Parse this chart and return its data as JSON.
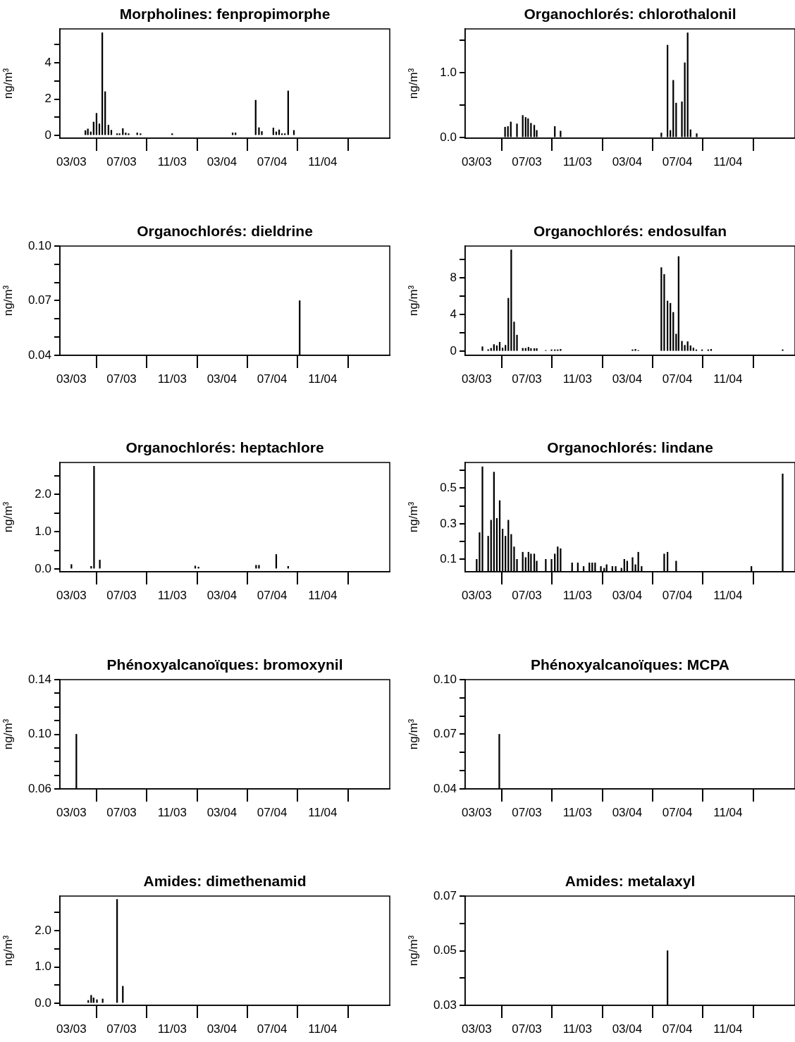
{
  "chart_data": [
    {
      "type": "bar",
      "title": "Morpholines: fenpropimorphe",
      "ylabel": "ng/m³",
      "color": "#000000",
      "x": [
        "2003-04-04",
        "2003-04-10",
        "2003-04-17",
        "2003-04-24",
        "2003-05-01",
        "2003-05-08",
        "2003-05-15",
        "2003-05-22",
        "2003-05-30",
        "2003-06-06",
        "2003-06-20",
        "2003-06-26",
        "2003-07-04",
        "2003-07-11",
        "2003-07-18",
        "2003-08-08",
        "2003-08-16",
        "2003-11-01",
        "2004-03-27",
        "2004-04-03",
        "2004-05-22",
        "2004-05-30",
        "2004-06-06",
        "2004-07-04",
        "2004-07-11",
        "2004-07-18",
        "2004-07-25",
        "2004-08-01",
        "2004-08-09",
        "2004-08-23"
      ],
      "values": [
        0.27,
        0.36,
        0.2,
        0.74,
        1.22,
        0.64,
        5.65,
        2.41,
        0.57,
        0.29,
        0.1,
        0.1,
        0.38,
        0.14,
        0.1,
        0.14,
        0.1,
        0.1,
        0.14,
        0.14,
        1.94,
        0.43,
        0.22,
        0.41,
        0.2,
        0.31,
        0.1,
        0.1,
        2.45,
        0.28
      ],
      "xlim": [
        "2003-02-01",
        "2005-04-13"
      ],
      "xticks": [
        {
          "value": "2003-03",
          "label": "03/03"
        },
        {
          "value": "2003-07",
          "label": "07/03"
        },
        {
          "value": "2003-11",
          "label": "11/03"
        },
        {
          "value": "2004-03",
          "label": "03/04"
        },
        {
          "value": "2004-07",
          "label": "07/04"
        },
        {
          "value": "2004-11",
          "label": "11/04"
        }
      ],
      "ylim": [
        -0.15,
        5.86
      ],
      "yticks": [
        0,
        {
          "value": 1,
          "label": null
        },
        2,
        {
          "value": 3,
          "label": null
        },
        4,
        {
          "value": 5,
          "label": null
        }
      ]
    },
    {
      "type": "bar",
      "title": "Organochlorés: chlorothalonil",
      "ylabel": "ng/m³",
      "color": "#000000",
      "x": [
        "2003-05-09",
        "2003-05-16",
        "2003-05-23",
        "2003-06-07",
        "2003-06-21",
        "2003-06-28",
        "2003-07-04",
        "2003-07-11",
        "2003-07-19",
        "2003-07-25",
        "2003-09-07",
        "2003-09-21",
        "2004-05-23",
        "2004-06-07",
        "2004-06-14",
        "2004-06-21",
        "2004-06-28",
        "2004-07-12",
        "2004-07-19",
        "2004-07-26",
        "2004-08-02",
        "2004-08-17"
      ],
      "values": [
        0.16,
        0.17,
        0.24,
        0.21,
        0.34,
        0.31,
        0.29,
        0.22,
        0.19,
        0.11,
        0.17,
        0.1,
        0.07,
        1.42,
        0.11,
        0.88,
        0.53,
        0.55,
        1.15,
        1.61,
        0.12,
        0.06
      ],
      "xlim": [
        "2003-02-01",
        "2005-04-13"
      ],
      "xticks": [
        {
          "value": "2003-03",
          "label": "03/03"
        },
        {
          "value": "2003-07",
          "label": "07/03"
        },
        {
          "value": "2003-11",
          "label": "11/03"
        },
        {
          "value": "2004-03",
          "label": "03/04"
        },
        {
          "value": "2004-07",
          "label": "07/04"
        },
        {
          "value": "2004-11",
          "label": "11/04"
        }
      ],
      "ylim": [
        -0.01,
        1.67
      ],
      "yticks": [
        {
          "value": 0,
          "label": "0.0"
        },
        {
          "value": 0.5,
          "label": null
        },
        {
          "value": 1,
          "label": "1.0"
        },
        {
          "value": 1.5,
          "label": null
        }
      ]
    },
    {
      "type": "bar",
      "title": "Organochlorés: dieldrine",
      "ylabel": "ng/m³",
      "color": "#000000",
      "x": [
        "2004-09-06"
      ],
      "values": [
        0.07
      ],
      "xlim": [
        "2003-02-01",
        "2005-04-13"
      ],
      "xticks": [
        {
          "value": "2003-03",
          "label": "03/03"
        },
        {
          "value": "2003-07",
          "label": "07/03"
        },
        {
          "value": "2003-11",
          "label": "11/03"
        },
        {
          "value": "2004-03",
          "label": "03/04"
        },
        {
          "value": "2004-07",
          "label": "07/04"
        },
        {
          "value": "2004-11",
          "label": "11/04"
        }
      ],
      "ylim": [
        0.04,
        0.1
      ],
      "yticks": [
        0.04,
        {
          "value": 0.05,
          "label": null
        },
        {
          "value": 0.06,
          "label": null
        },
        0.07,
        {
          "value": 0.08,
          "label": null
        },
        {
          "value": 0.09,
          "label": null
        },
        {
          "value": 0.1,
          "label": "0.10"
        }
      ]
    },
    {
      "type": "bar",
      "title": "Organochlorés: endosulfan",
      "ylabel": "ng/m³",
      "color": "#000000",
      "x": [
        "2003-03-15",
        "2003-03-29",
        "2003-04-05",
        "2003-04-12",
        "2003-04-19",
        "2003-04-26",
        "2003-05-03",
        "2003-05-10",
        "2003-05-17",
        "2003-05-24",
        "2003-05-31",
        "2003-06-07",
        "2003-06-21",
        "2003-06-28",
        "2003-07-05",
        "2003-07-11",
        "2003-07-19",
        "2003-07-25",
        "2003-08-16",
        "2003-08-30",
        "2003-09-07",
        "2003-09-14",
        "2003-09-21",
        "2004-03-14",
        "2004-03-21",
        "2004-03-28",
        "2004-05-23",
        "2004-05-30",
        "2004-06-07",
        "2004-06-14",
        "2004-06-21",
        "2004-06-28",
        "2004-07-04",
        "2004-07-12",
        "2004-07-19",
        "2004-07-26",
        "2004-08-02",
        "2004-08-09",
        "2004-08-16",
        "2004-08-30",
        "2004-09-14",
        "2004-09-21",
        "2005-03-14"
      ],
      "values": [
        0.5,
        0.19,
        0.33,
        0.74,
        0.61,
        0.99,
        0.36,
        0.66,
        5.79,
        11.06,
        3.2,
        1.77,
        0.33,
        0.33,
        0.44,
        0.3,
        0.3,
        0.3,
        0.1,
        0.17,
        0.17,
        0.17,
        0.22,
        0.17,
        0.22,
        0.1,
        9.13,
        8.39,
        5.49,
        5.24,
        4.25,
        1.88,
        10.34,
        1.1,
        0.66,
        1.05,
        0.61,
        0.36,
        0.17,
        0.17,
        0.17,
        0.22,
        0.17
      ],
      "xlim": [
        "2003-02-01",
        "2005-04-13"
      ],
      "xticks": [
        {
          "value": "2003-03",
          "label": "03/03"
        },
        {
          "value": "2003-07",
          "label": "07/03"
        },
        {
          "value": "2003-11",
          "label": "11/03"
        },
        {
          "value": "2004-03",
          "label": "03/04"
        },
        {
          "value": "2004-07",
          "label": "07/04"
        },
        {
          "value": "2004-11",
          "label": "11/04"
        }
      ],
      "ylim": [
        -0.44,
        11.48
      ],
      "yticks": [
        0,
        {
          "value": 2,
          "label": null
        },
        4,
        {
          "value": 6,
          "label": null
        },
        8,
        {
          "value": 10,
          "label": null
        }
      ]
    },
    {
      "type": "bar",
      "title": "Organochlorés: heptachlore",
      "ylabel": "ng/m³",
      "color": "#000000",
      "x": [
        "2003-03-01",
        "2003-04-18",
        "2003-04-25",
        "2003-05-09",
        "2003-12-27",
        "2004-01-04",
        "2004-05-23",
        "2004-05-30",
        "2004-07-11",
        "2004-08-09"
      ],
      "values": [
        0.12,
        0.07,
        2.76,
        0.24,
        0.08,
        0.05,
        0.1,
        0.1,
        0.39,
        0.07
      ],
      "xlim": [
        "2003-02-01",
        "2005-04-13"
      ],
      "xticks": [
        {
          "value": "2003-03",
          "label": "03/03"
        },
        {
          "value": "2003-07",
          "label": "07/03"
        },
        {
          "value": "2003-11",
          "label": "11/03"
        },
        {
          "value": "2004-03",
          "label": "03/04"
        },
        {
          "value": "2004-07",
          "label": "07/04"
        },
        {
          "value": "2004-11",
          "label": "11/04"
        }
      ],
      "ylim": [
        -0.075,
        2.86
      ],
      "yticks": [
        {
          "value": 0,
          "label": "0.0"
        },
        {
          "value": 0.5,
          "label": null
        },
        {
          "value": 1,
          "label": "1.0"
        },
        {
          "value": 1.5,
          "label": null
        },
        {
          "value": 2,
          "label": "2.0"
        },
        {
          "value": 2.5,
          "label": null
        }
      ]
    },
    {
      "type": "bar",
      "title": "Organochlorés: lindane",
      "ylabel": "ng/m³",
      "color": "#000000",
      "x": [
        "2003-03-01",
        "2003-03-08",
        "2003-03-15",
        "2003-03-29",
        "2003-04-05",
        "2003-04-12",
        "2003-04-19",
        "2003-04-26",
        "2003-05-03",
        "2003-05-10",
        "2003-05-17",
        "2003-05-24",
        "2003-05-31",
        "2003-06-07",
        "2003-06-21",
        "2003-06-28",
        "2003-07-05",
        "2003-07-11",
        "2003-07-19",
        "2003-07-25",
        "2003-08-16",
        "2003-08-30",
        "2003-09-07",
        "2003-09-14",
        "2003-09-21",
        "2003-10-19",
        "2003-11-02",
        "2003-11-16",
        "2003-11-30",
        "2003-12-07",
        "2003-12-14",
        "2003-12-28",
        "2004-01-05",
        "2004-01-11",
        "2004-01-25",
        "2004-02-02",
        "2004-02-16",
        "2004-02-23",
        "2004-03-01",
        "2004-03-14",
        "2004-03-21",
        "2004-03-28",
        "2004-04-05",
        "2004-05-30",
        "2004-06-07",
        "2004-06-28",
        "2004-12-28",
        "2005-03-14"
      ],
      "values": [
        0.1,
        0.25,
        0.62,
        0.23,
        0.32,
        0.59,
        0.33,
        0.43,
        0.27,
        0.23,
        0.32,
        0.24,
        0.17,
        0.1,
        0.14,
        0.11,
        0.14,
        0.13,
        0.13,
        0.09,
        0.1,
        0.1,
        0.13,
        0.17,
        0.16,
        0.08,
        0.08,
        0.06,
        0.08,
        0.08,
        0.08,
        0.06,
        0.05,
        0.07,
        0.06,
        0.06,
        0.05,
        0.1,
        0.09,
        0.11,
        0.07,
        0.14,
        0.06,
        0.13,
        0.14,
        0.09,
        0.06,
        0.58
      ],
      "xlim": [
        "2003-02-01",
        "2005-04-13"
      ],
      "xticks": [
        {
          "value": "2003-03",
          "label": "03/03"
        },
        {
          "value": "2003-07",
          "label": "07/03"
        },
        {
          "value": "2003-11",
          "label": "11/03"
        },
        {
          "value": "2004-03",
          "label": "03/04"
        },
        {
          "value": "2004-07",
          "label": "07/04"
        },
        {
          "value": "2004-11",
          "label": "11/04"
        }
      ],
      "ylim": [
        0.03,
        0.644
      ],
      "yticks": [
        0.1,
        {
          "value": 0.2,
          "label": null
        },
        0.3,
        {
          "value": 0.4,
          "label": null
        },
        0.5,
        {
          "value": 0.6,
          "label": null
        }
      ]
    },
    {
      "type": "bar",
      "title": "Phénoxyalcanoïques: bromoxynil",
      "ylabel": "ng/m³",
      "color": "#000000",
      "x": [
        "2003-03-13"
      ],
      "values": [
        0.1
      ],
      "xlim": [
        "2003-02-01",
        "2005-04-13"
      ],
      "xticks": [
        {
          "value": "2003-03",
          "label": "03/03"
        },
        {
          "value": "2003-07",
          "label": "07/03"
        },
        {
          "value": "2003-11",
          "label": "11/03"
        },
        {
          "value": "2004-03",
          "label": "03/04"
        },
        {
          "value": "2004-07",
          "label": "07/04"
        },
        {
          "value": "2004-11",
          "label": "11/04"
        }
      ],
      "ylim": [
        0.06,
        0.14
      ],
      "yticks": [
        0.06,
        {
          "value": 0.07,
          "label": null
        },
        {
          "value": 0.08,
          "label": null
        },
        {
          "value": 0.09,
          "label": null
        },
        {
          "value": 0.1,
          "label": "0.10"
        },
        {
          "value": 0.11,
          "label": null
        },
        {
          "value": 0.12,
          "label": null
        },
        {
          "value": 0.13,
          "label": null
        },
        0.14
      ]
    },
    {
      "type": "bar",
      "title": "Phénoxyalcanoïques: MCPA",
      "ylabel": "ng/m³",
      "color": "#000000",
      "x": [
        "2003-04-25"
      ],
      "values": [
        0.07
      ],
      "xlim": [
        "2003-02-01",
        "2005-04-13"
      ],
      "xticks": [
        {
          "value": "2003-03",
          "label": "03/03"
        },
        {
          "value": "2003-07",
          "label": "07/03"
        },
        {
          "value": "2003-11",
          "label": "11/03"
        },
        {
          "value": "2004-03",
          "label": "03/04"
        },
        {
          "value": "2004-07",
          "label": "07/04"
        },
        {
          "value": "2004-11",
          "label": "11/04"
        }
      ],
      "ylim": [
        0.04,
        0.1
      ],
      "yticks": [
        0.04,
        {
          "value": 0.05,
          "label": null
        },
        {
          "value": 0.06,
          "label": null
        },
        0.07,
        {
          "value": 0.08,
          "label": null
        },
        {
          "value": 0.09,
          "label": null
        },
        {
          "value": 0.1,
          "label": "0.10"
        }
      ]
    },
    {
      "type": "bar",
      "title": "Amides: dimethenamid",
      "ylabel": "ng/m³",
      "color": "#000000",
      "x": [
        "2003-04-11",
        "2003-04-18",
        "2003-04-24",
        "2003-05-02",
        "2003-05-16",
        "2003-06-20",
        "2003-07-04"
      ],
      "values": [
        0.08,
        0.22,
        0.15,
        0.1,
        0.12,
        2.86,
        0.47
      ],
      "xlim": [
        "2003-02-01",
        "2005-04-13"
      ],
      "xticks": [
        {
          "value": "2003-03",
          "label": "03/03"
        },
        {
          "value": "2003-07",
          "label": "07/03"
        },
        {
          "value": "2003-11",
          "label": "11/03"
        },
        {
          "value": "2004-03",
          "label": "03/04"
        },
        {
          "value": "2004-07",
          "label": "07/04"
        },
        {
          "value": "2004-11",
          "label": "11/04"
        }
      ],
      "ylim": [
        -0.056,
        2.95
      ],
      "yticks": [
        {
          "value": 0,
          "label": "0.0"
        },
        {
          "value": 0.5,
          "label": null
        },
        {
          "value": 1,
          "label": "1.0"
        },
        {
          "value": 1.5,
          "label": null
        },
        {
          "value": 2,
          "label": "2.0"
        },
        {
          "value": 2.5,
          "label": null
        }
      ]
    },
    {
      "type": "bar",
      "title": "Amides: metalaxyl",
      "ylabel": "ng/m³",
      "color": "#000000",
      "x": [
        "2004-06-07"
      ],
      "values": [
        0.05
      ],
      "xlim": [
        "2003-02-01",
        "2005-04-13"
      ],
      "xticks": [
        {
          "value": "2003-03",
          "label": "03/03"
        },
        {
          "value": "2003-07",
          "label": "07/03"
        },
        {
          "value": "2003-11",
          "label": "11/03"
        },
        {
          "value": "2004-03",
          "label": "03/04"
        },
        {
          "value": "2004-07",
          "label": "07/04"
        },
        {
          "value": "2004-11",
          "label": "11/04"
        }
      ],
      "ylim": [
        0.03,
        0.07
      ],
      "yticks": [
        0.03,
        {
          "value": 0.04,
          "label": null
        },
        0.05,
        {
          "value": 0.06,
          "label": null
        },
        0.07
      ]
    }
  ]
}
